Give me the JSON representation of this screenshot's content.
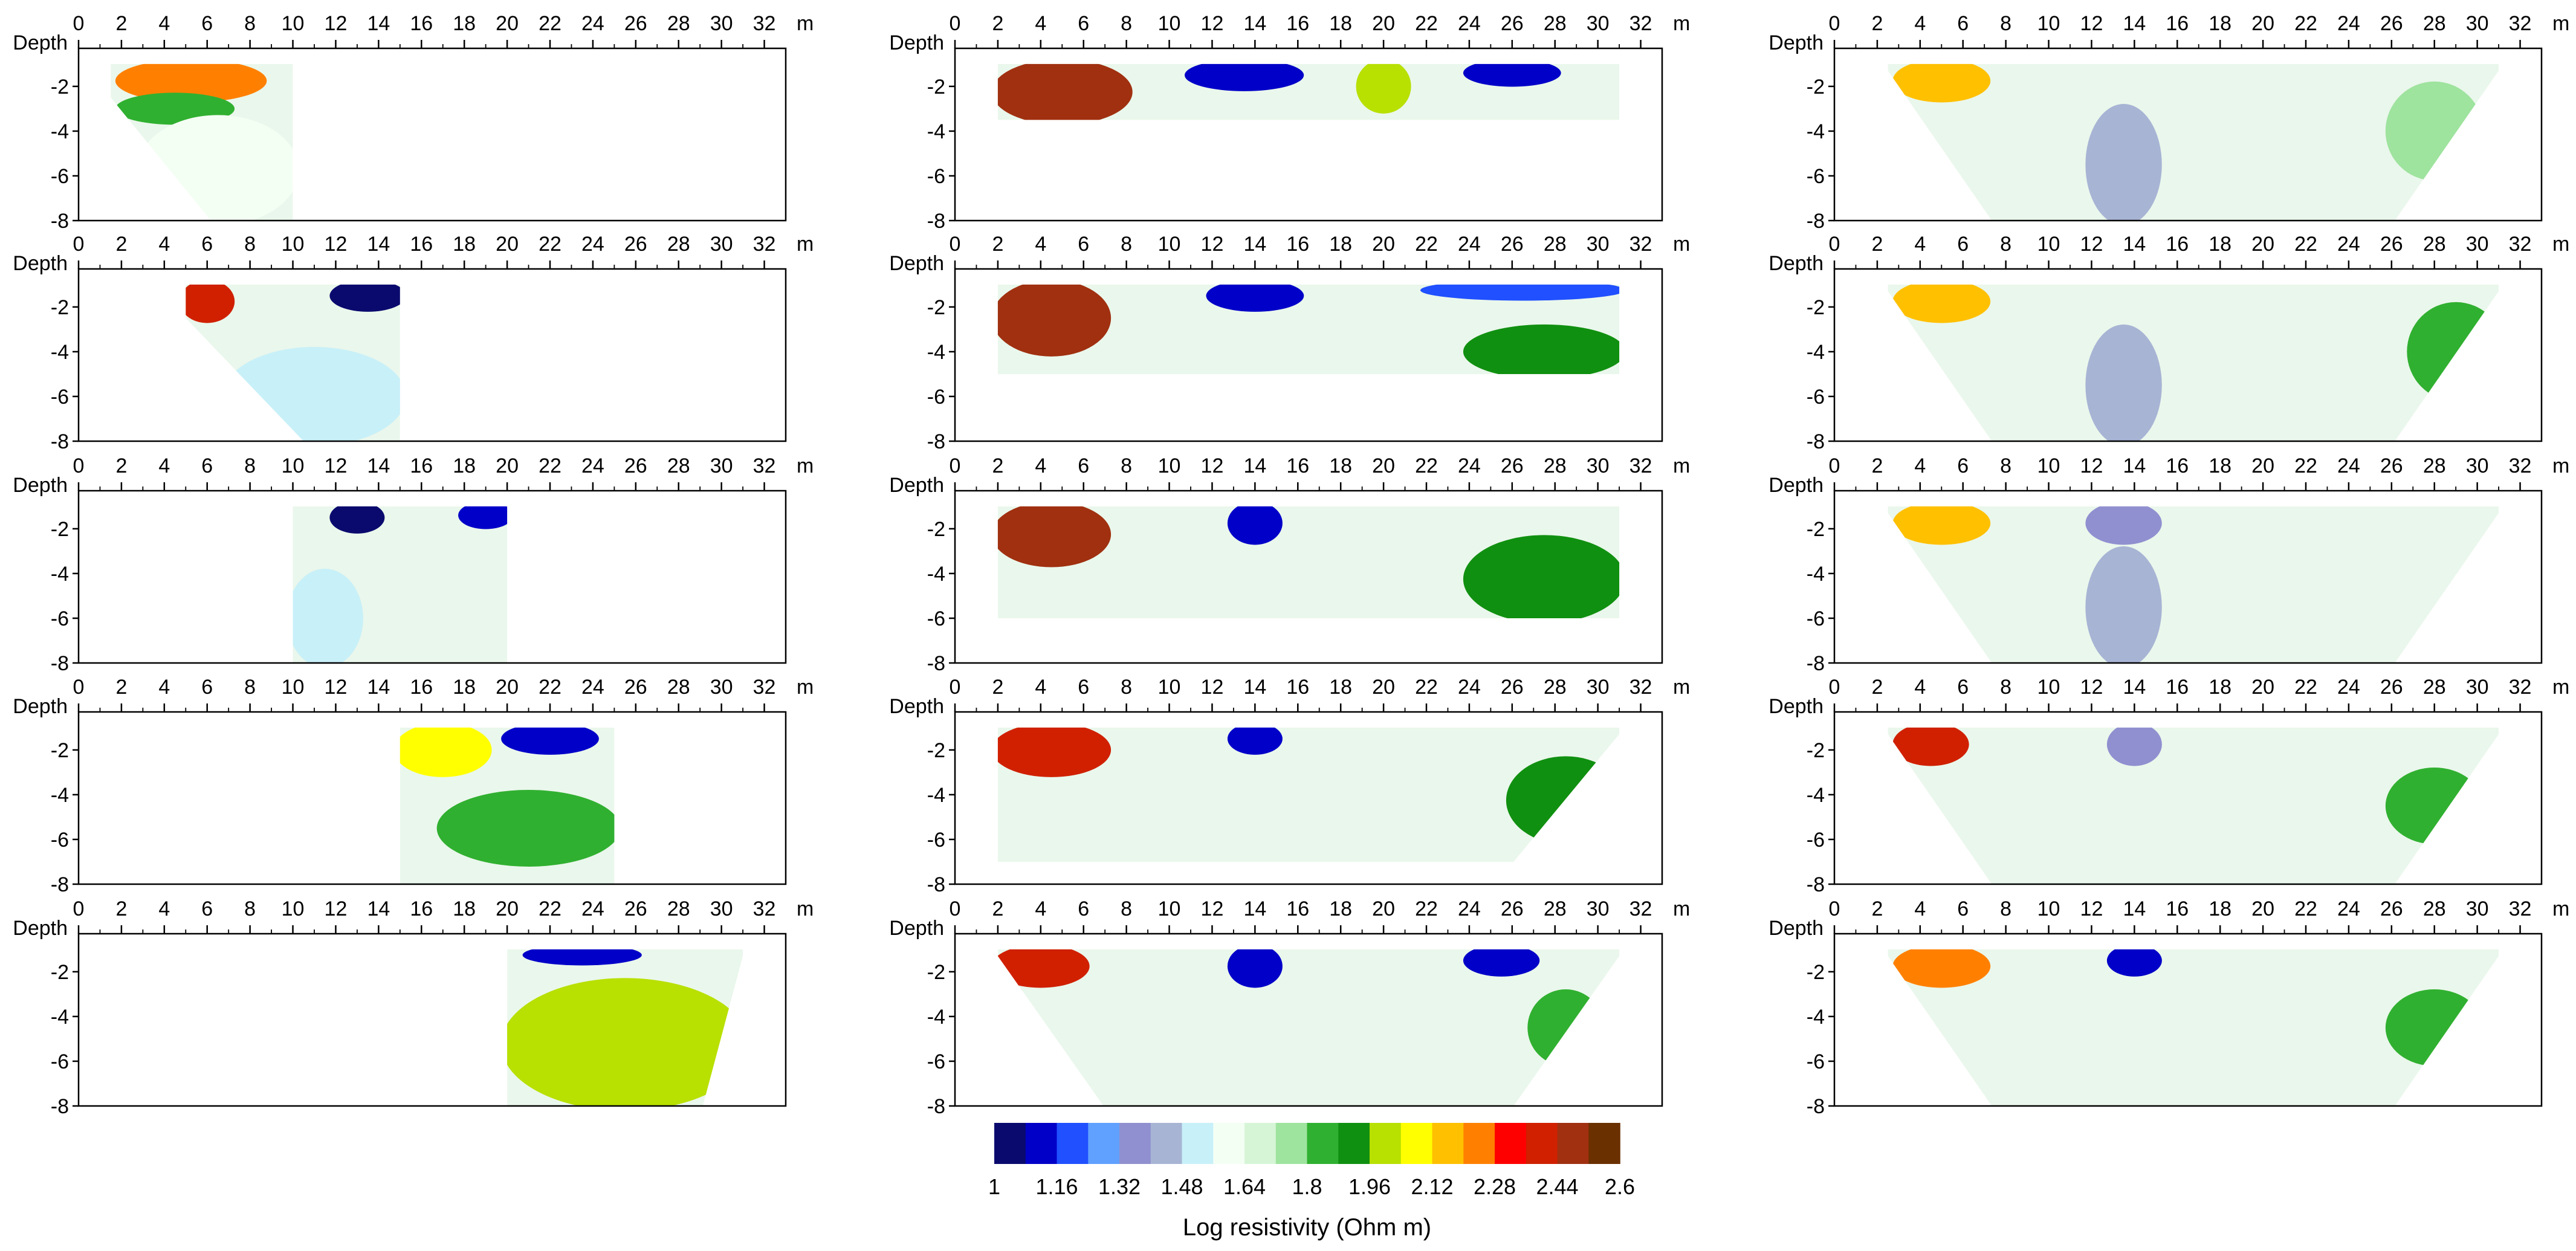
{
  "chart_data": {
    "type": "heatmap",
    "title": "",
    "description_units": "Log resistivity (Ohm m)",
    "layout": "5 rows x 3 columns of pseudo-section panels",
    "x_axis": {
      "label": "m",
      "ticks": [
        0,
        2,
        4,
        6,
        8,
        10,
        12,
        14,
        16,
        18,
        20,
        22,
        24,
        26,
        28,
        30,
        32
      ],
      "range": [
        0,
        33
      ]
    },
    "y_axis": {
      "label": "Depth",
      "ticks": [
        -2,
        -4,
        -6,
        -8
      ],
      "range": [
        -8,
        -0.3
      ]
    },
    "colorbar": {
      "title": "Log resistivity (Ohm m)",
      "range": [
        1,
        2.6
      ],
      "tick_labels": [
        "1",
        "1.16",
        "1.32",
        "1.48",
        "1.64",
        "1.8",
        "1.96",
        "2.12",
        "2.28",
        "2.44",
        "2.6"
      ],
      "colors": [
        "#0a0a6e",
        "#0000c8",
        "#2050ff",
        "#60a0ff",
        "#9090d0",
        "#a8b4d4",
        "#c8f0f8",
        "#f4fff4",
        "#d6f5d6",
        "#9ee39e",
        "#30b030",
        "#109010",
        "#b8e000",
        "#ffff00",
        "#ffc000",
        "#ff8000",
        "#ff0000",
        "#d02000",
        "#a03010",
        "#6b3000"
      ]
    },
    "panels": [
      {
        "id": "r1c1",
        "x_range": [
          1.5,
          10
        ],
        "depth_range": [
          -1,
          -8
        ],
        "shape": "left-tapered",
        "zones": [
          {
            "x": [
              2,
              8.5
            ],
            "depth": [
              -1,
              -2.5
            ],
            "value": 2.3
          },
          {
            "x": [
              2,
              7
            ],
            "depth": [
              -2.5,
              -3.5
            ],
            "value": 1.85
          },
          {
            "x": [
              3,
              10
            ],
            "depth": [
              -3.5,
              -8
            ],
            "value": 1.62
          }
        ]
      },
      {
        "id": "r1c2",
        "x_range": [
          2,
          31
        ],
        "depth_range": [
          -1,
          -3.5
        ],
        "shape": "rectangular",
        "zones": [
          {
            "x": [
              2,
              8
            ],
            "depth": [
              -1,
              -3.5
            ],
            "value": 2.5
          },
          {
            "x": [
              11,
              16
            ],
            "depth": [
              -1,
              -2
            ],
            "value": 1.05
          },
          {
            "x": [
              19,
              21
            ],
            "depth": [
              -1,
              -3
            ],
            "value": 2.0
          },
          {
            "x": [
              24,
              28
            ],
            "depth": [
              -1,
              -1.8
            ],
            "value": 1.1
          }
        ]
      },
      {
        "id": "r1c3",
        "x_range": [
          2.5,
          31
        ],
        "depth_range": [
          -1,
          -8
        ],
        "shape": "trapezoid",
        "zones": [
          {
            "x": [
              3,
              7
            ],
            "depth": [
              -1,
              -2.5
            ],
            "value": 2.2
          },
          {
            "x": [
              12,
              15
            ],
            "depth": [
              -3,
              -8
            ],
            "value": 1.45
          },
          {
            "x": [
              26,
              30
            ],
            "depth": [
              -2,
              -6
            ],
            "value": 1.78
          }
        ]
      },
      {
        "id": "r2c1",
        "x_range": [
          5,
          15
        ],
        "depth_range": [
          -1,
          -8
        ],
        "shape": "left-tapered",
        "zones": [
          {
            "x": [
              5,
              7
            ],
            "depth": [
              -1,
              -2.5
            ],
            "value": 2.4
          },
          {
            "x": [
              12,
              15
            ],
            "depth": [
              -1,
              -2
            ],
            "value": 1.02
          },
          {
            "x": [
              7,
              15
            ],
            "depth": [
              -4,
              -8
            ],
            "value": 1.52
          }
        ]
      },
      {
        "id": "r2c2",
        "x_range": [
          2,
          31
        ],
        "depth_range": [
          -1,
          -5
        ],
        "shape": "rectangular",
        "zones": [
          {
            "x": [
              2,
              7
            ],
            "depth": [
              -1,
              -4
            ],
            "value": 2.55
          },
          {
            "x": [
              12,
              16
            ],
            "depth": [
              -1,
              -2
            ],
            "value": 1.1
          },
          {
            "x": [
              24,
              31
            ],
            "depth": [
              -3,
              -5
            ],
            "value": 1.96
          },
          {
            "x": [
              22,
              31
            ],
            "depth": [
              -1,
              -1.5
            ],
            "value": 1.15
          }
        ]
      },
      {
        "id": "r2c3",
        "x_range": [
          2.5,
          31
        ],
        "depth_range": [
          -1,
          -8
        ],
        "shape": "trapezoid",
        "zones": [
          {
            "x": [
              3,
              7
            ],
            "depth": [
              -1,
              -2.5
            ],
            "value": 2.2
          },
          {
            "x": [
              12,
              15
            ],
            "depth": [
              -3,
              -8
            ],
            "value": 1.45
          },
          {
            "x": [
              27,
              31
            ],
            "depth": [
              -2,
              -6
            ],
            "value": 1.8
          }
        ]
      },
      {
        "id": "r3c1",
        "x_range": [
          10,
          20
        ],
        "depth_range": [
          -1,
          -8
        ],
        "shape": "rectangular",
        "zones": [
          {
            "x": [
              12,
              14
            ],
            "depth": [
              -1,
              -2
            ],
            "value": 1.03
          },
          {
            "x": [
              18,
              20
            ],
            "depth": [
              -1,
              -1.8
            ],
            "value": 1.05
          },
          {
            "x": [
              10,
              13
            ],
            "depth": [
              -4,
              -8
            ],
            "value": 1.5
          }
        ]
      },
      {
        "id": "r3c2",
        "x_range": [
          2,
          31
        ],
        "depth_range": [
          -1,
          -6
        ],
        "shape": "rectangular",
        "zones": [
          {
            "x": [
              2,
              7
            ],
            "depth": [
              -1,
              -3.5
            ],
            "value": 2.5
          },
          {
            "x": [
              13,
              15
            ],
            "depth": [
              -1,
              -2.5
            ],
            "value": 1.05
          },
          {
            "x": [
              24,
              31
            ],
            "depth": [
              -2.5,
              -6
            ],
            "value": 1.96
          }
        ]
      },
      {
        "id": "r3c3",
        "x_range": [
          2.5,
          31
        ],
        "depth_range": [
          -1,
          -8
        ],
        "shape": "trapezoid",
        "zones": [
          {
            "x": [
              3,
              7
            ],
            "depth": [
              -1,
              -2.5
            ],
            "value": 2.2
          },
          {
            "x": [
              12,
              15
            ],
            "depth": [
              -1,
              -2.5
            ],
            "value": 1.3
          },
          {
            "x": [
              12,
              15
            ],
            "depth": [
              -3,
              -8
            ],
            "value": 1.45
          }
        ]
      },
      {
        "id": "r4c1",
        "x_range": [
          15,
          25
        ],
        "depth_range": [
          -1,
          -8
        ],
        "shape": "rectangular",
        "zones": [
          {
            "x": [
              15,
              19
            ],
            "depth": [
              -1,
              -3
            ],
            "value": 2.1
          },
          {
            "x": [
              20,
              24
            ],
            "depth": [
              -1,
              -2
            ],
            "value": 1.05
          },
          {
            "x": [
              17,
              25
            ],
            "depth": [
              -4,
              -7
            ],
            "value": 1.8
          }
        ]
      },
      {
        "id": "r4c2",
        "x_range": [
          2,
          31
        ],
        "depth_range": [
          -1,
          -7
        ],
        "shape": "right-tapered",
        "zones": [
          {
            "x": [
              2,
              7
            ],
            "depth": [
              -1,
              -3
            ],
            "value": 2.45
          },
          {
            "x": [
              13,
              15
            ],
            "depth": [
              -1,
              -2
            ],
            "value": 1.05
          },
          {
            "x": [
              26,
              31
            ],
            "depth": [
              -2.5,
              -6
            ],
            "value": 1.96
          }
        ]
      },
      {
        "id": "r4c3",
        "x_range": [
          2.5,
          31
        ],
        "depth_range": [
          -1,
          -8
        ],
        "shape": "trapezoid",
        "zones": [
          {
            "x": [
              3,
              6
            ],
            "depth": [
              -1,
              -2.5
            ],
            "value": 2.45
          },
          {
            "x": [
              13,
              15
            ],
            "depth": [
              -1,
              -2.5
            ],
            "value": 1.3
          },
          {
            "x": [
              26,
              30
            ],
            "depth": [
              -3,
              -6
            ],
            "value": 1.82
          }
        ]
      },
      {
        "id": "r5c1",
        "x_range": [
          20,
          31
        ],
        "depth_range": [
          -1,
          -8
        ],
        "shape": "right-tapered",
        "zones": [
          {
            "x": [
              21,
              26
            ],
            "depth": [
              -1,
              -1.5
            ],
            "value": 1.05
          },
          {
            "x": [
              20,
              31
            ],
            "depth": [
              -2.5,
              -8
            ],
            "value": 1.97
          },
          {
            "x": [
              23,
              27
            ],
            "depth": [
              -3.5,
              -5
            ],
            "value": 2.0
          }
        ]
      },
      {
        "id": "r5c2",
        "x_range": [
          2,
          31
        ],
        "depth_range": [
          -1,
          -8
        ],
        "shape": "trapezoid",
        "zones": [
          {
            "x": [
              2,
              6
            ],
            "depth": [
              -1,
              -2.5
            ],
            "value": 2.4
          },
          {
            "x": [
              13,
              15
            ],
            "depth": [
              -1,
              -2.5
            ],
            "value": 1.05
          },
          {
            "x": [
              24,
              27
            ],
            "depth": [
              -1,
              -2
            ],
            "value": 1.05
          },
          {
            "x": [
              27,
              30
            ],
            "depth": [
              -3,
              -6
            ],
            "value": 1.88
          }
        ]
      },
      {
        "id": "r5c3",
        "x_range": [
          2.5,
          31
        ],
        "depth_range": [
          -1,
          -8
        ],
        "shape": "trapezoid",
        "zones": [
          {
            "x": [
              3,
              7
            ],
            "depth": [
              -1,
              -2.5
            ],
            "value": 2.3
          },
          {
            "x": [
              13,
              15
            ],
            "depth": [
              -1,
              -2
            ],
            "value": 1.05
          },
          {
            "x": [
              26,
              30
            ],
            "depth": [
              -3,
              -6
            ],
            "value": 1.8
          }
        ]
      }
    ]
  }
}
